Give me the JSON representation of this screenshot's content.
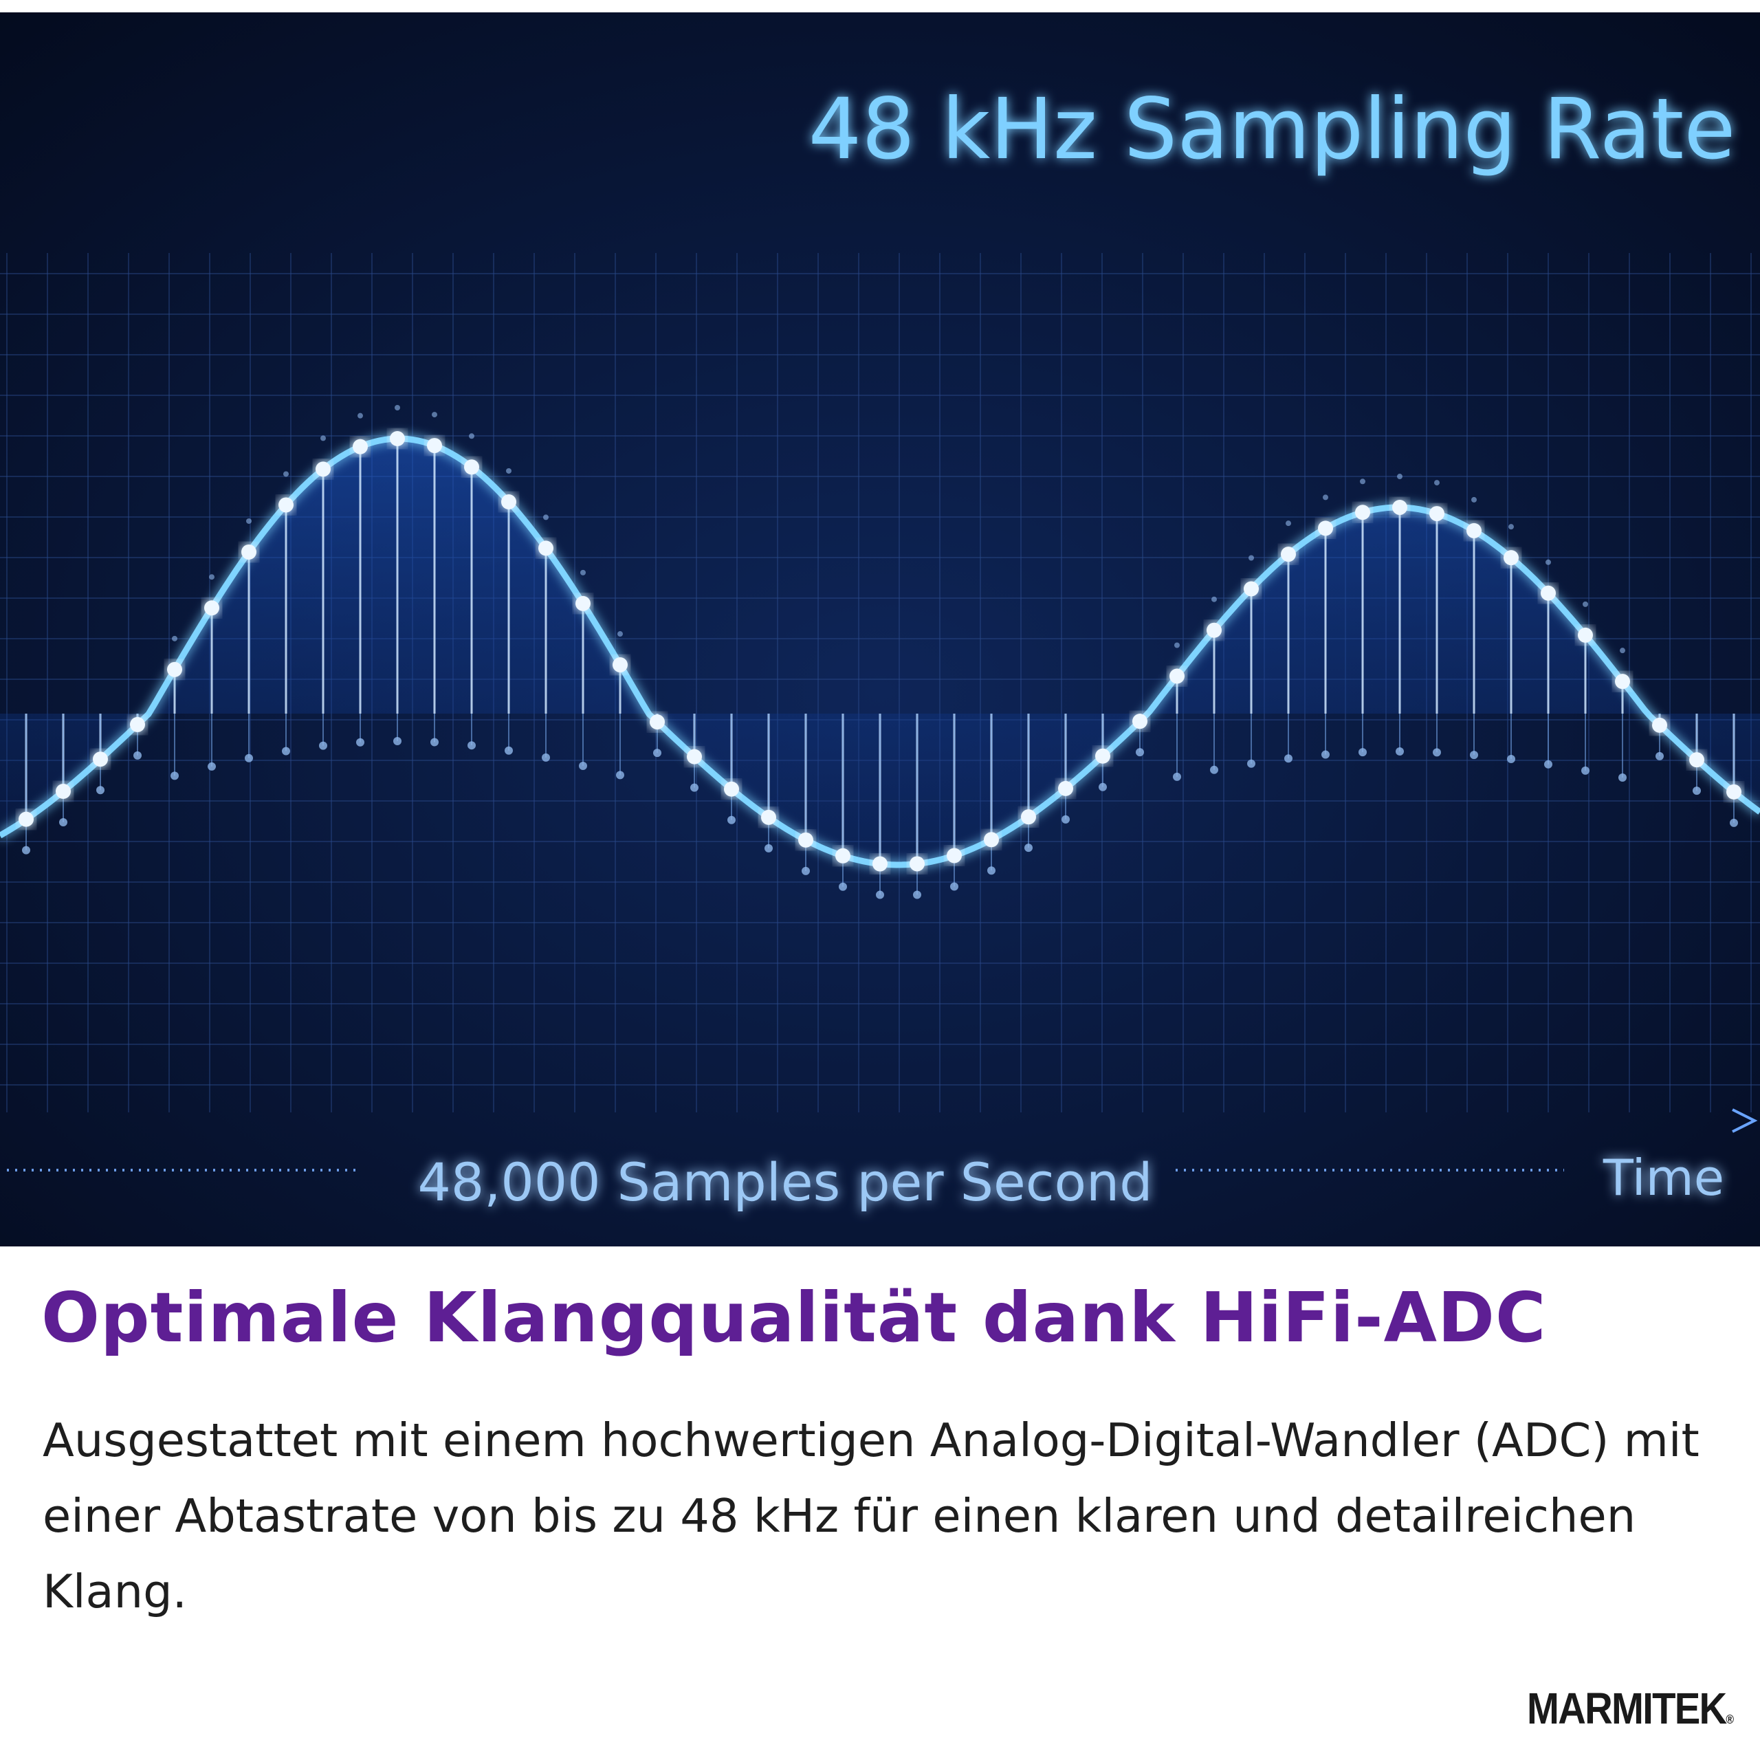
{
  "graphic": {
    "title": "48 kHz Sampling Rate",
    "caption": "48,000 Samples per Second",
    "axis_label": "Time"
  },
  "heading": "Optimale Klangqualität dank HiFi-ADC",
  "body": "Ausgestattet mit einem hochwertigen Analog-Digital-Wandler (ADC) mit einer Abtastrate von bis zu 48 kHz für einen klaren und detailreichen Klang.",
  "logo": {
    "name": "MARMITEK",
    "mark": "®"
  }
}
